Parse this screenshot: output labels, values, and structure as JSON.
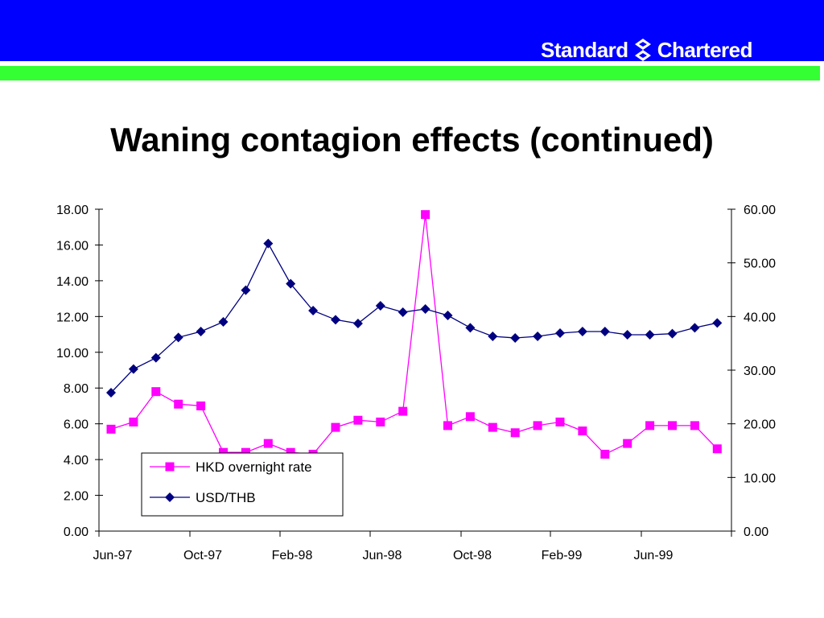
{
  "header": {
    "brand_left": "Standard",
    "brand_right": "Chartered",
    "colors": {
      "blue": "#0000ff",
      "green": "#33ff33"
    }
  },
  "slide": {
    "title": "Waning contagion effects (continued)"
  },
  "chart_data": {
    "type": "line",
    "title": "Waning contagion effects (continued)",
    "x_tick_labels": [
      "Jun-97",
      "Oct-97",
      "Feb-98",
      "Jun-98",
      "Oct-98",
      "Feb-99",
      "Jun-99"
    ],
    "y_left": {
      "ylim": [
        0,
        18
      ],
      "ticks": [
        "0.00",
        "2.00",
        "4.00",
        "6.00",
        "8.00",
        "10.00",
        "12.00",
        "14.00",
        "16.00",
        "18.00"
      ]
    },
    "y_right": {
      "ylim": [
        0,
        60
      ],
      "ticks": [
        "0.00",
        "10.00",
        "20.00",
        "30.00",
        "40.00",
        "50.00",
        "60.00"
      ]
    },
    "series": [
      {
        "name": "HKD overnight rate",
        "axis": "left",
        "color": "#ff00ff",
        "marker": "square",
        "values": [
          5.7,
          6.1,
          7.8,
          7.1,
          7.0,
          4.4,
          4.4,
          4.9,
          4.4,
          4.3,
          5.8,
          6.2,
          6.1,
          6.7,
          17.7,
          5.9,
          6.4,
          5.8,
          5.5,
          5.9,
          6.1,
          5.6,
          4.3,
          4.9,
          5.9,
          5.9,
          5.9,
          4.6
        ]
      },
      {
        "name": "USD/THB",
        "axis": "right",
        "color": "#000080",
        "marker": "diamond",
        "values": [
          25.8,
          30.2,
          32.3,
          36.1,
          37.2,
          39.0,
          44.9,
          53.6,
          46.1,
          41.1,
          39.4,
          38.7,
          42.0,
          40.8,
          41.4,
          40.2,
          37.9,
          36.3,
          36.0,
          36.3,
          36.9,
          37.2,
          37.2,
          36.6,
          36.6,
          36.8,
          37.9,
          38.8
        ]
      }
    ],
    "legend": {
      "placement": "lower-left",
      "items": [
        "HKD overnight rate",
        "USD/THB"
      ]
    },
    "grid": false
  }
}
